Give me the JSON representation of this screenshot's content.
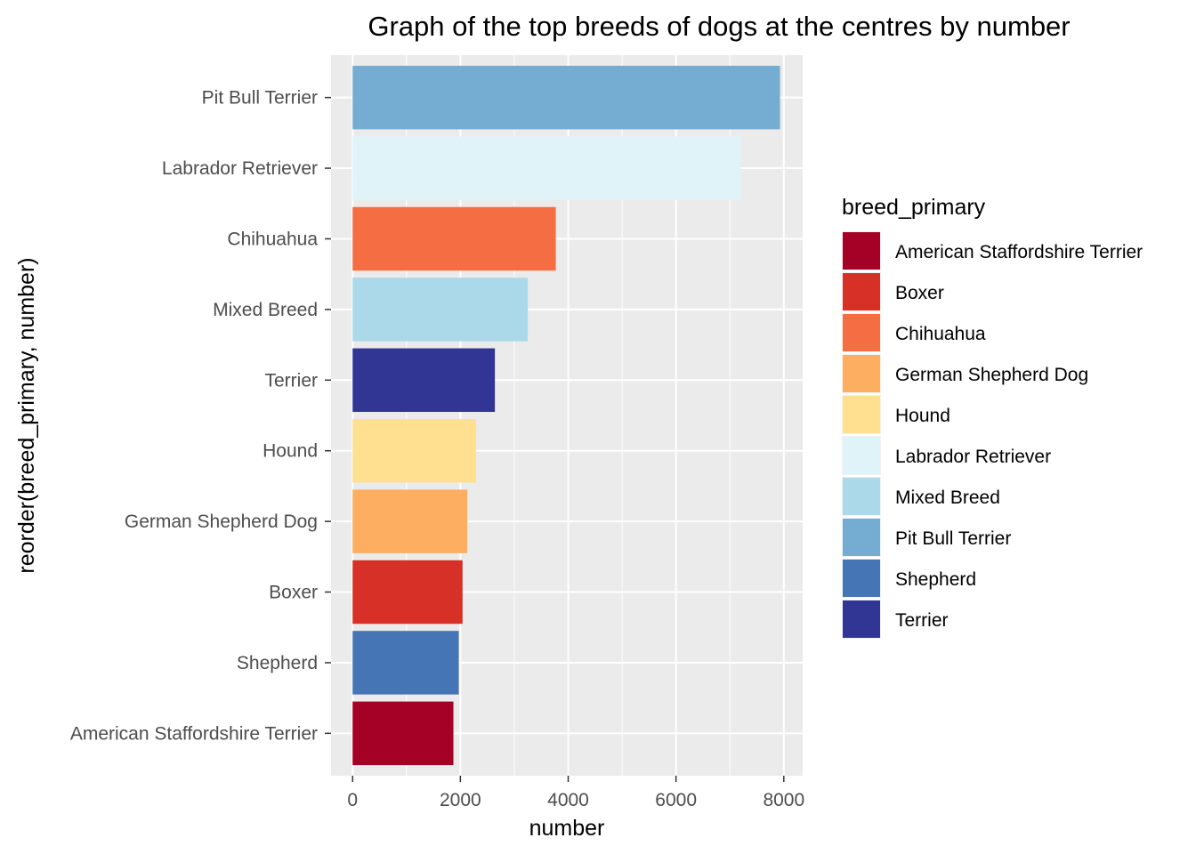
{
  "chart_data": {
    "type": "bar",
    "orientation": "horizontal",
    "title": "Graph of the top breeds of dogs at the centres by number",
    "xlabel": "number",
    "ylabel": "reorder(breed_primary, number)",
    "xlim": [
      -400,
      8350
    ],
    "x_ticks": [
      0,
      2000,
      4000,
      6000,
      8000
    ],
    "categories": [
      "American Staffordshire Terrier",
      "Shepherd",
      "Boxer",
      "German Shepherd Dog",
      "Hound",
      "Terrier",
      "Mixed Breed",
      "Chihuahua",
      "Labrador Retriever",
      "Pit Bull Terrier"
    ],
    "values": [
      1870,
      1970,
      2040,
      2130,
      2290,
      2640,
      3250,
      3770,
      7200,
      7930
    ],
    "bar_colors": {
      "American Staffordshire Terrier": "#a50026",
      "Boxer": "#d73027",
      "Chihuahua": "#f46d43",
      "German Shepherd Dog": "#fdae61",
      "Hound": "#fee090",
      "Labrador Retriever": "#e0f3f8",
      "Mixed Breed": "#abd9e9",
      "Pit Bull Terrier": "#74add1",
      "Shepherd": "#4575b4",
      "Terrier": "#313695"
    },
    "legend": {
      "title": "breed_primary",
      "position": "right",
      "entries": [
        "American Staffordshire Terrier",
        "Boxer",
        "Chihuahua",
        "German Shepherd Dog",
        "Hound",
        "Labrador Retriever",
        "Mixed Breed",
        "Pit Bull Terrier",
        "Shepherd",
        "Terrier"
      ]
    },
    "grid": true,
    "panel_background": "#ebebeb",
    "grid_color": "#ffffff"
  }
}
